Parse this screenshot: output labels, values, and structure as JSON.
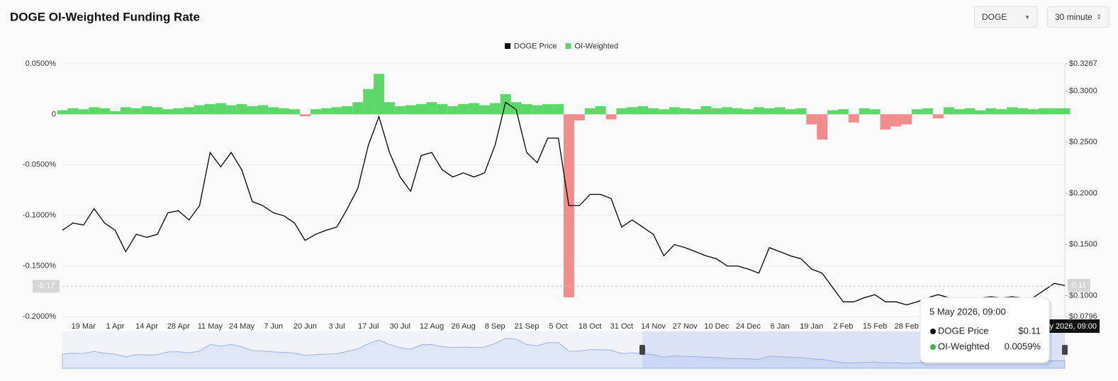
{
  "controls": {
    "symbol": "DOGE",
    "interval": "30 minute"
  },
  "chart_data": {
    "type": "combo",
    "title": "DOGE OI-Weighted Funding Rate",
    "legend": "top",
    "grid": true,
    "categories": [
      null,
      null,
      "19 Mar",
      null,
      null,
      "1 Apr",
      null,
      null,
      "14 Apr",
      null,
      null,
      "28 Apr",
      null,
      null,
      "11 May",
      null,
      null,
      "24 May",
      null,
      null,
      "7 Jun",
      null,
      null,
      "20 Jun",
      null,
      null,
      "3 Jul",
      null,
      null,
      "17 Jul",
      null,
      null,
      "30 Jul",
      null,
      null,
      "12 Aug",
      null,
      null,
      "26 Aug",
      null,
      null,
      "8 Sep",
      null,
      null,
      "21 Sep",
      null,
      null,
      "5 Oct",
      null,
      null,
      "18 Oct",
      null,
      null,
      "31 Oct",
      null,
      null,
      "14 Nov",
      null,
      null,
      "27 Nov",
      null,
      null,
      "10 Dec",
      null,
      null,
      "24 Dec",
      null,
      null,
      "6 Jan",
      null,
      null,
      "19 Jan",
      null,
      null,
      "2 Feb",
      null,
      null,
      "15 Feb",
      null,
      null,
      "28 Feb",
      null,
      null,
      null,
      null,
      null,
      null,
      null,
      null,
      null,
      null,
      null,
      null,
      null,
      null,
      null
    ],
    "series": [
      {
        "name": "DOGE Price",
        "type": "line",
        "axis": "y2",
        "color": "#000000",
        "values": [
          0.164,
          0.171,
          0.169,
          0.185,
          0.171,
          0.164,
          0.143,
          0.16,
          0.157,
          0.16,
          0.181,
          0.183,
          0.174,
          0.188,
          0.24,
          0.226,
          0.24,
          0.223,
          0.192,
          0.188,
          0.181,
          0.178,
          0.171,
          0.154,
          0.16,
          0.164,
          0.167,
          0.185,
          0.205,
          0.247,
          0.275,
          0.24,
          0.216,
          0.202,
          0.237,
          0.24,
          0.223,
          0.216,
          0.22,
          0.216,
          0.22,
          0.247,
          0.289,
          0.282,
          0.24,
          0.23,
          0.254,
          0.254,
          0.188,
          0.188,
          0.199,
          0.199,
          0.195,
          0.167,
          0.174,
          0.167,
          0.16,
          0.139,
          0.15,
          0.147,
          0.143,
          0.139,
          0.136,
          0.129,
          0.129,
          0.126,
          0.122,
          0.147,
          0.143,
          0.139,
          0.136,
          0.126,
          0.122,
          0.108,
          0.094,
          0.094,
          0.098,
          0.101,
          0.094,
          0.094,
          0.091,
          0.094,
          0.098,
          0.101,
          0.098,
          0.098,
          0.098,
          0.098,
          0.099,
          0.098,
          0.099,
          0.098,
          0.098,
          0.105,
          0.112,
          0.11
        ]
      },
      {
        "name": "OI-Weighted",
        "type": "bar",
        "color": "#5dd66a",
        "negative_color": "#f28b8b",
        "values": [
          0.004,
          0.006,
          0.005,
          0.007,
          0.006,
          0.003,
          0.007,
          0.006,
          0.008,
          0.007,
          0.005,
          0.006,
          0.007,
          0.009,
          0.01,
          0.011,
          0.009,
          0.01,
          0.008,
          0.009,
          0.007,
          0.006,
          0.005,
          -0.002,
          0.005,
          0.006,
          0.007,
          0.008,
          0.012,
          0.025,
          0.04,
          0.012,
          0.008,
          0.009,
          0.01,
          0.012,
          0.01,
          0.008,
          0.01,
          0.011,
          0.009,
          0.011,
          0.02,
          0.012,
          0.01,
          0.009,
          0.01,
          0.01,
          -0.181,
          -0.006,
          0.006,
          0.008,
          -0.005,
          0.006,
          0.007,
          0.008,
          0.006,
          0.005,
          0.007,
          0.006,
          0.005,
          0.008,
          0.006,
          0.007,
          0.006,
          0.005,
          0.007,
          0.006,
          0.007,
          0.005,
          0.006,
          -0.01,
          -0.025,
          0.004,
          0.005,
          -0.008,
          0.006,
          0.005,
          -0.015,
          -0.012,
          -0.01,
          0.005,
          0.006,
          -0.004,
          0.007,
          0.005,
          0.006,
          0.004,
          0.006,
          0.005,
          0.007,
          0.006,
          0.005,
          0.006,
          0.006,
          0.0059
        ]
      }
    ],
    "ylim": [
      -0.2,
      0.05
    ],
    "yticks": [
      {
        "value": 0.05,
        "label": "0.0500%"
      },
      0,
      {
        "value": -0.05,
        "label": "-0.0500%"
      },
      {
        "value": -0.1,
        "label": "-0.1000%"
      },
      {
        "value": -0.15,
        "label": "-0.1500%"
      },
      {
        "value": -0.2,
        "label": "-0.2000%"
      }
    ],
    "y2lim": [
      0.0796,
      0.3267
    ],
    "y2ticks": [
      {
        "value": 0.3267,
        "label": "$0.3267"
      },
      {
        "value": 0.3,
        "label": "$0.3000"
      },
      {
        "value": 0.25,
        "label": "$0.2500"
      },
      {
        "value": 0.2,
        "label": "$0.2000"
      },
      {
        "value": 0.15,
        "label": "$0.1500"
      },
      {
        "value": 0.1,
        "label": "$0.1000"
      },
      {
        "value": 0.0796,
        "label": "$0.0796"
      }
    ],
    "crosshair": {
      "y": -0.17,
      "y2": 0.11
    },
    "tooltip": {
      "title": "5 May 2026, 09:00",
      "values": [
        "$0.11",
        "0.0059%"
      ]
    }
  }
}
